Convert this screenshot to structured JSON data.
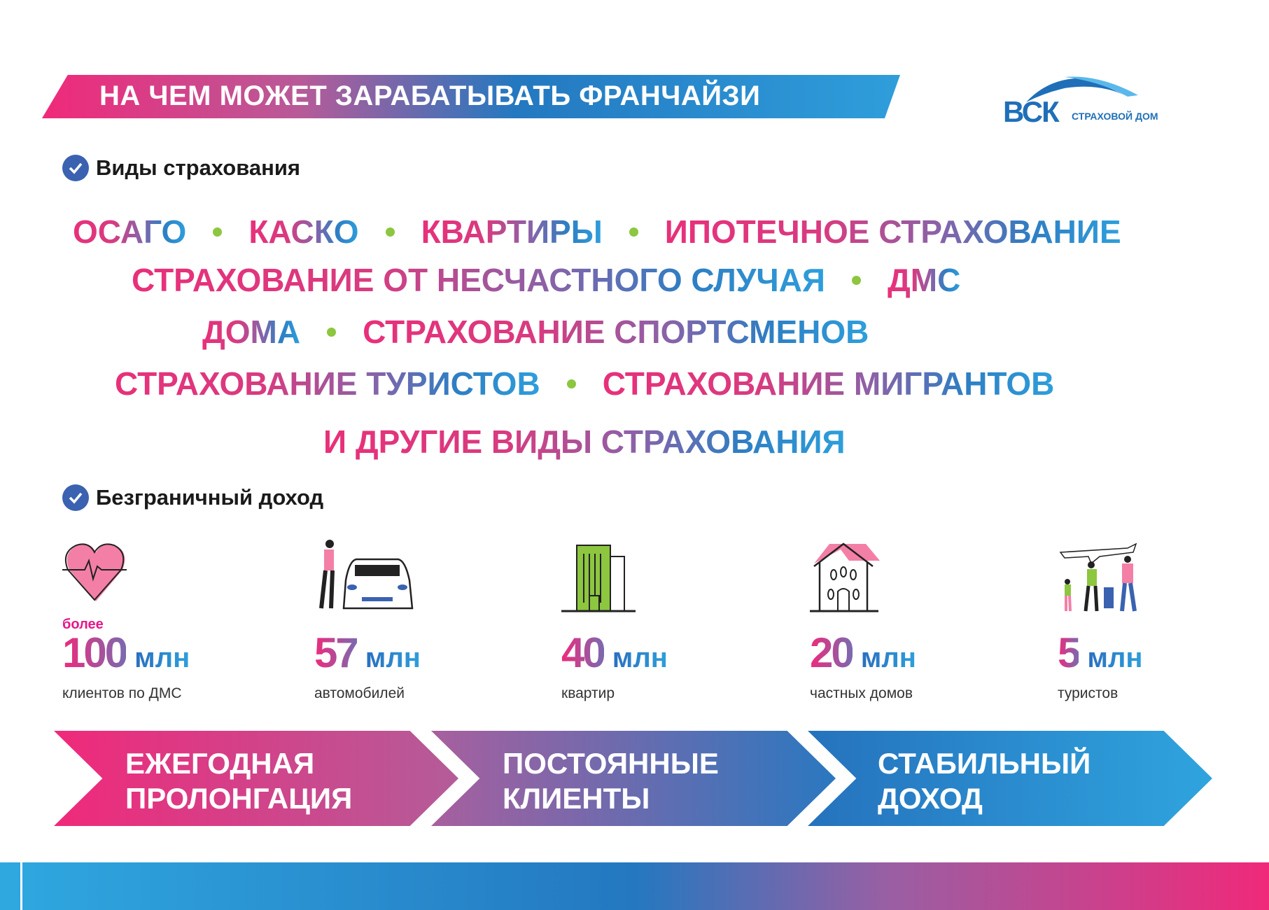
{
  "header": {
    "title": "НА ЧЕМ МОЖЕТ ЗАРАБАТЫВАТЬ ФРАНЧАЙЗИ"
  },
  "logo": {
    "brand": "ВСК",
    "subtitle": "СТРАХОВОЙ ДОМ"
  },
  "sections": {
    "insurance_types": "Виды страхования",
    "income": "Безграничный доход"
  },
  "insurance_lines": [
    [
      "ОСАГО",
      "КАСКО",
      "КВАРТИРЫ",
      "ИПОТЕЧНОЕ СТРАХОВАНИЕ"
    ],
    [
      "СТРАХОВАНИЕ ОТ НЕСЧАСТНОГО СЛУЧАЯ",
      "ДМС"
    ],
    [
      "ДОМА",
      "СТРАХОВАНИЕ СПОРТСМЕНОВ"
    ],
    [
      "СТРАХОВАНИЕ ТУРИСТОВ",
      "СТРАХОВАНИЕ МИГРАНТОВ"
    ],
    [
      "И ДРУГИЕ ВИДЫ СТРАХОВАНИЯ"
    ]
  ],
  "stats": [
    {
      "icon": "heart-pulse-icon",
      "prefix": "более",
      "number": "100",
      "unit": "млн",
      "label": "клиентов по ДМС"
    },
    {
      "icon": "woman-car-icon",
      "prefix": "",
      "number": "57",
      "unit": "млн",
      "label": "автомобилей"
    },
    {
      "icon": "apartment-building-icon",
      "prefix": "",
      "number": "40",
      "unit": "млн",
      "label": "квартир"
    },
    {
      "icon": "house-icon",
      "prefix": "",
      "number": "20",
      "unit": "млн",
      "label": "частных домов"
    },
    {
      "icon": "tourists-plane-icon",
      "prefix": "",
      "number": "5",
      "unit": "млн",
      "label": "туристов"
    }
  ],
  "steps": [
    "ЕЖЕГОДНАЯ\nПРОЛОНГАЦИЯ",
    "ПОСТОЯННЫЕ\nКЛИЕНТЫ",
    "СТАБИЛЬНЫЙ\nДОХОД"
  ],
  "colors": {
    "pink": "#f0297a",
    "blue": "#2478c0",
    "light_blue": "#2f9edb",
    "bullet_green": "#8dc63f",
    "check_blue": "#3a62b0"
  }
}
